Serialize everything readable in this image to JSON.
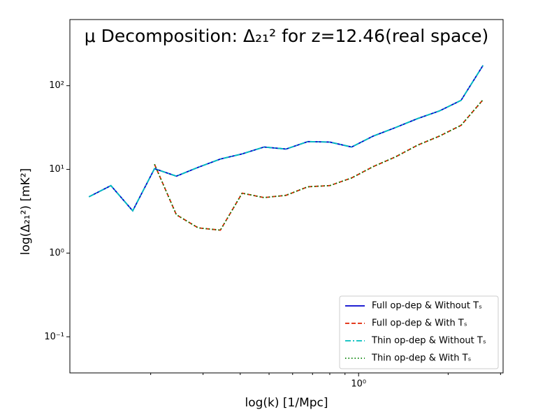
{
  "chart_data": {
    "type": "line",
    "title": "μ Decomposition: Δ₂₁² for z=12.46(real space)",
    "xlabel": "log(k) [1/Mpc]",
    "ylabel": "log(Δ₂₁²) [mK²]",
    "xscale": "log",
    "yscale": "log",
    "x": [
      0.124,
      0.147,
      0.174,
      0.206,
      0.244,
      0.289,
      0.343,
      0.406,
      0.481,
      0.57,
      0.675,
      0.8,
      0.947,
      1.12,
      1.33,
      1.58,
      1.87,
      2.21,
      2.62
    ],
    "series": [
      {
        "name": "Full op-dep & Without Tₛ",
        "color": "#0000cd",
        "linestyle": "solid",
        "values": [
          4.7,
          6.4,
          3.2,
          10.2,
          8.3,
          10.6,
          13.3,
          15.3,
          18.5,
          17.5,
          21.5,
          21.2,
          18.5,
          25,
          31.6,
          40.5,
          50,
          66.8,
          175
        ]
      },
      {
        "name": "Full op-dep & With Tₛ",
        "color": "#e02000",
        "linestyle": "dashed",
        "values": [
          null,
          null,
          null,
          11.5,
          2.87,
          2.0,
          1.88,
          5.2,
          4.6,
          4.9,
          6.2,
          6.4,
          7.9,
          10.8,
          14.1,
          19.5,
          25,
          33.6,
          68
        ]
      },
      {
        "name": "Thin op-dep & Without Tₛ",
        "color": "#00bfbf",
        "linestyle": "dashdot",
        "values": [
          4.7,
          6.4,
          3.2,
          10.2,
          8.3,
          10.6,
          13.3,
          15.3,
          18.5,
          17.5,
          21.5,
          21.2,
          18.5,
          25,
          31.6,
          40.5,
          50,
          66.8,
          175
        ]
      },
      {
        "name": "Thin op-dep & With Tₛ",
        "color": "#008000",
        "linestyle": "dotted",
        "values": [
          null,
          null,
          null,
          11.5,
          2.87,
          2.0,
          1.88,
          5.2,
          4.6,
          4.9,
          6.2,
          6.4,
          7.9,
          10.8,
          14.1,
          19.5,
          25,
          33.6,
          68
        ]
      }
    ],
    "xlim": [
      0.107,
      3.06
    ],
    "ylim": [
      0.037,
      617
    ],
    "xticks": [
      {
        "value": 1,
        "label": "10⁰"
      }
    ],
    "xminor_ticks": [
      0.2,
      0.3,
      0.4,
      0.5,
      0.6,
      0.7,
      0.8,
      0.9,
      2,
      3
    ],
    "yticks": [
      {
        "value": 0.1,
        "label": "10⁻¹"
      },
      {
        "value": 1,
        "label": "10⁰"
      },
      {
        "value": 10,
        "label": "10¹"
      },
      {
        "value": 100,
        "label": "10²"
      }
    ],
    "legend": "lower right",
    "grid": false
  }
}
